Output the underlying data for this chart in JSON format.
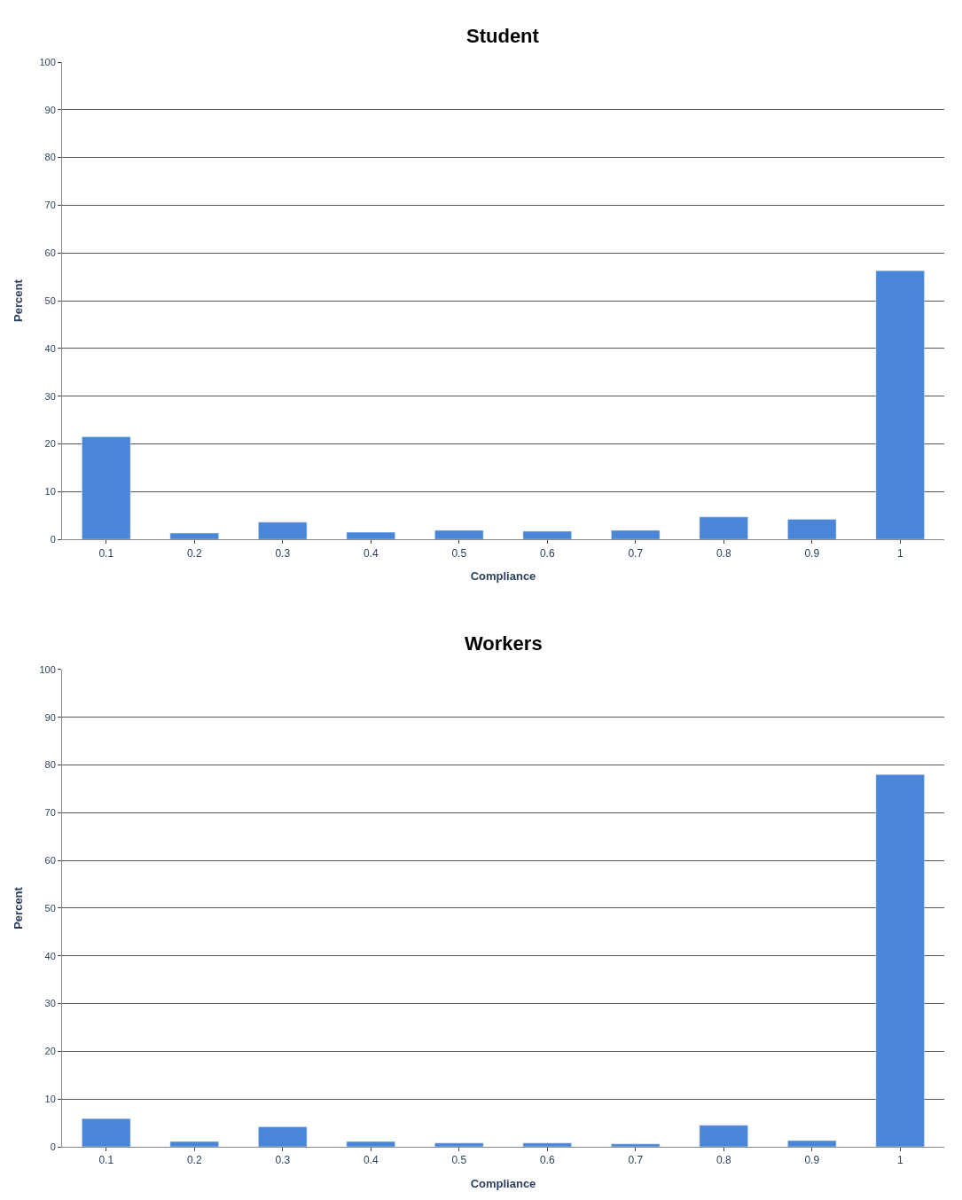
{
  "chart_data": [
    {
      "type": "bar",
      "title": "Student",
      "xlabel": "Compliance",
      "ylabel": "Percent",
      "categories": [
        "0.1",
        "0.2",
        "0.3",
        "0.4",
        "0.5",
        "0.6",
        "0.7",
        "0.8",
        "0.9",
        "1"
      ],
      "series": [
        {
          "color": "#4a86d8",
          "values": [
            21.5,
            1.3,
            3.6,
            1.5,
            1.9,
            1.7,
            1.9,
            4.7,
            4.2,
            56.3
          ]
        }
      ],
      "ylim": [
        0,
        100
      ],
      "yticks": [
        0,
        10,
        20,
        30,
        40,
        50,
        60,
        70,
        80,
        90,
        100
      ],
      "grid": "y"
    },
    {
      "type": "bar",
      "title": "Workers",
      "xlabel": "Compliance",
      "ylabel": "Percent",
      "categories": [
        "0.1",
        "0.2",
        "0.3",
        "0.4",
        "0.5",
        "0.6",
        "0.7",
        "0.8",
        "0.9",
        "1"
      ],
      "series": [
        {
          "color": "#4a86d8",
          "values": [
            5.9,
            1.1,
            4.2,
            1.1,
            0.8,
            0.8,
            0.6,
            4.5,
            1.3,
            78
          ]
        }
      ],
      "ylim": [
        0,
        100
      ],
      "yticks": [
        0,
        10,
        20,
        30,
        40,
        50,
        60,
        70,
        80,
        90,
        100
      ],
      "grid": "y"
    }
  ]
}
